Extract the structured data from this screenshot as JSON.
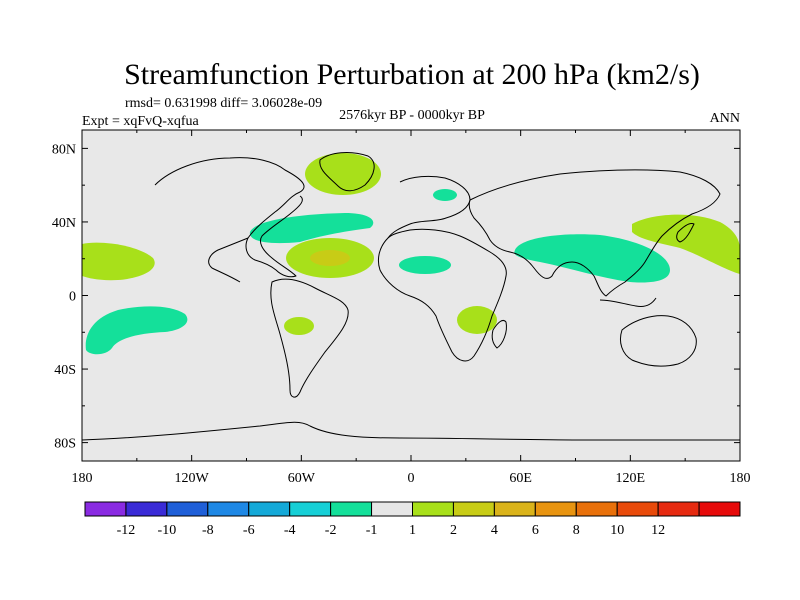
{
  "title": "Streamfunction Perturbation at 200 hPa (km2/s)",
  "stats": "rmsd= 0.631998 diff= 3.06028e-09",
  "left_label": "Expt = xqFvQ-xqfua",
  "center_label": "2576kyr BP - 0000kyr BP",
  "right_label": "ANN",
  "lat_ticks": [
    "80N",
    "40N",
    "0",
    "40S",
    "80S"
  ],
  "lon_ticks": [
    "180",
    "120W",
    "60W",
    "0",
    "60E",
    "120E",
    "180"
  ],
  "colorbar": {
    "colors": [
      "#8a2be2",
      "#3a2bd6",
      "#1f5fd8",
      "#1e88e5",
      "#14a9d8",
      "#16cfd6",
      "#14e09a",
      "#e6e6e6",
      "#a8e01a",
      "#c8cc16",
      "#dab31a",
      "#e89410",
      "#e8700a",
      "#e84a0a",
      "#e62a10",
      "#e60a0a"
    ],
    "labels": [
      "-12",
      "-10",
      "-8",
      "-6",
      "-4",
      "-2",
      "-1",
      "1",
      "2",
      "4",
      "6",
      "8",
      "10",
      "12"
    ]
  },
  "chart_data": {
    "type": "heatmap",
    "title": "Streamfunction Perturbation at 200 hPa (km2/s)",
    "units": "km2/s",
    "x_range": [
      -180,
      180
    ],
    "y_range": [
      -90,
      90
    ],
    "background_value_range": [
      -1,
      1
    ],
    "anomalies": [
      {
        "name": "greenland-positive",
        "lon": -38,
        "lat": 70,
        "value": 2
      },
      {
        "name": "scandinavia-negative",
        "lon": 18,
        "lat": 57,
        "value": -2
      },
      {
        "name": "north-atlantic-negative",
        "lon": -50,
        "lat": 39,
        "value": -2
      },
      {
        "name": "subtropical-atlantic-positive",
        "lon": -50,
        "lat": 22,
        "value": 4
      },
      {
        "name": "east-pacific-north-positive",
        "lon": -165,
        "lat": 20,
        "value": 2
      },
      {
        "name": "south-pacific-negative",
        "lon": -160,
        "lat": -18,
        "value": -2
      },
      {
        "name": "amazon-positive",
        "lon": -60,
        "lat": -15,
        "value": 2
      },
      {
        "name": "north-africa-negative",
        "lon": 14,
        "lat": 16,
        "value": -2
      },
      {
        "name": "south-africa-positive",
        "lon": 38,
        "lat": -14,
        "value": 2
      },
      {
        "name": "asia-negative",
        "lon": 95,
        "lat": 22,
        "value": -2
      },
      {
        "name": "west-pacific-positive",
        "lon": 155,
        "lat": 30,
        "value": 2
      }
    ]
  }
}
